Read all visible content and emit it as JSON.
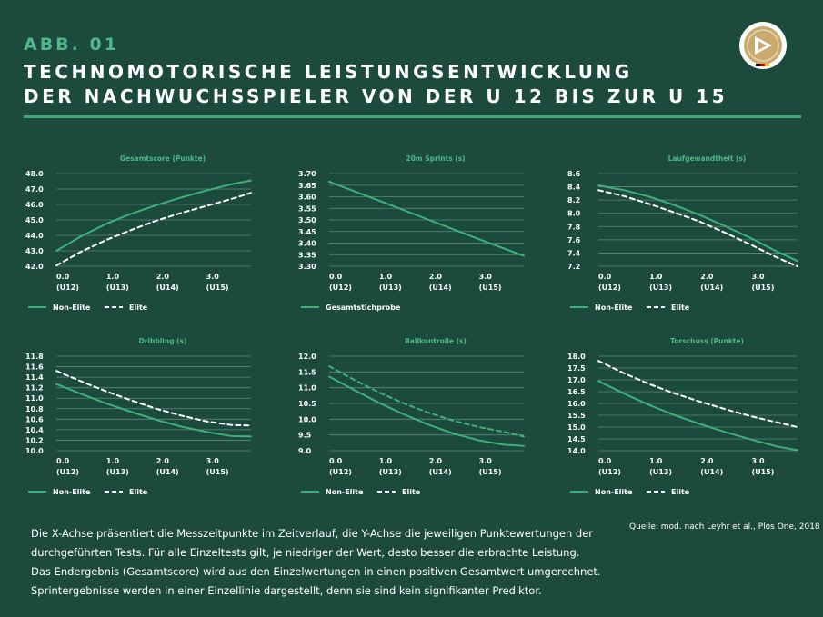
{
  "header": {
    "figure_label": "ABB. 01",
    "title_line1": "TECHNOMOTORISCHE LEISTUNGSENTWICKLUNG",
    "title_line2": "DER NACHWUCHSSPIELER VON DER U 12 BIS ZUR U 15"
  },
  "logo": {
    "icon": "dfb-logo-icon"
  },
  "colors": {
    "background": "#1c4a3c",
    "accent": "#4fb78a",
    "line": "#3db07e",
    "dashed": "#ffffff"
  },
  "chart_data": [
    {
      "type": "line",
      "title": "Gesamtscore (Punkte)",
      "x": [
        0,
        1,
        2,
        3
      ],
      "xticks": [
        {
          "value": "0.0",
          "label": "(U12)"
        },
        {
          "value": "1.0",
          "label": "(U13)"
        },
        {
          "value": "2.0",
          "label": "(U14)"
        },
        {
          "value": "3.0",
          "label": "(U15)"
        }
      ],
      "xlim": [
        0,
        3.9
      ],
      "ylim": [
        42.0,
        48.0
      ],
      "yticks": [
        "48.0",
        "47.0",
        "46.0",
        "45.0",
        "44.0",
        "43.0",
        "42.0"
      ],
      "series": [
        {
          "name": "Non-Elite",
          "style": "solid",
          "x": [
            0,
            0.5,
            1,
            1.5,
            2,
            2.5,
            3,
            3.5,
            3.9
          ],
          "y": [
            43.0,
            43.95,
            44.75,
            45.4,
            45.95,
            46.45,
            46.9,
            47.3,
            47.55
          ]
        },
        {
          "name": "Elite",
          "style": "dashed",
          "x": [
            0,
            0.5,
            1,
            1.5,
            2,
            2.5,
            3,
            3.5,
            3.9
          ],
          "y": [
            42.05,
            42.95,
            43.7,
            44.35,
            44.95,
            45.45,
            45.9,
            46.35,
            46.75
          ]
        }
      ],
      "legend": [
        "Non-Elite",
        "Elite"
      ]
    },
    {
      "type": "line",
      "title": "20m Sprints (s)",
      "x": [
        0,
        1,
        2,
        3
      ],
      "xticks": [
        {
          "value": "0.0",
          "label": "(U12)"
        },
        {
          "value": "1.0",
          "label": "(U13)"
        },
        {
          "value": "2.0",
          "label": "(U14)"
        },
        {
          "value": "3.0",
          "label": "(U15)"
        }
      ],
      "xlim": [
        0,
        3.9
      ],
      "ylim": [
        3.3,
        3.7
      ],
      "yticks": [
        "3.70",
        "3.65",
        "3.60",
        "3.55",
        "3.50",
        "3.45",
        "3.40",
        "3.35",
        "3.30"
      ],
      "series": [
        {
          "name": "Gesamtstichprobe",
          "style": "solid",
          "x": [
            0,
            1,
            2,
            3,
            3.9
          ],
          "y": [
            3.665,
            3.583,
            3.5,
            3.417,
            3.345
          ]
        }
      ],
      "legend": [
        "Gesamtstichprobe"
      ]
    },
    {
      "type": "line",
      "title": "Laufgewandtheit (s)",
      "x": [
        0,
        1,
        2,
        3
      ],
      "xticks": [
        {
          "value": "0.0",
          "label": "(U12)"
        },
        {
          "value": "1.0",
          "label": "(U13)"
        },
        {
          "value": "2.0",
          "label": "(U14)"
        },
        {
          "value": "3.0",
          "label": "(U15)"
        }
      ],
      "xlim": [
        0,
        3.9
      ],
      "ylim": [
        7.2,
        8.6
      ],
      "yticks": [
        "8.6",
        "8.4",
        "8.2",
        "8.0",
        "7.8",
        "7.6",
        "7.4",
        "7.2"
      ],
      "series": [
        {
          "name": "Non-Elite",
          "style": "solid",
          "x": [
            0,
            0.5,
            1,
            1.5,
            2,
            2.5,
            3,
            3.5,
            3.9
          ],
          "y": [
            8.42,
            8.35,
            8.25,
            8.12,
            7.97,
            7.8,
            7.62,
            7.42,
            7.28
          ]
        },
        {
          "name": "Elite",
          "style": "dashed",
          "x": [
            0,
            0.5,
            1,
            1.5,
            2,
            2.5,
            3,
            3.5,
            3.9
          ],
          "y": [
            8.35,
            8.26,
            8.14,
            8.01,
            7.87,
            7.7,
            7.52,
            7.33,
            7.2
          ]
        }
      ],
      "legend": [
        "Non-Elite",
        "Elite"
      ]
    },
    {
      "type": "line",
      "title": "Dribbling (s)",
      "x": [
        0,
        1,
        2,
        3
      ],
      "xticks": [
        {
          "value": "0.0",
          "label": "(U12)"
        },
        {
          "value": "1.0",
          "label": "(U13)"
        },
        {
          "value": "2.0",
          "label": "(U14)"
        },
        {
          "value": "3.0",
          "label": "(U15)"
        }
      ],
      "xlim": [
        0,
        3.9
      ],
      "ylim": [
        10.0,
        11.8
      ],
      "yticks": [
        "11.8",
        "11.6",
        "11.4",
        "11.2",
        "11.0",
        "10.8",
        "10.6",
        "10.4",
        "10.2",
        "10.0"
      ],
      "series": [
        {
          "name": "Non-Elite",
          "style": "solid",
          "x": [
            0,
            0.5,
            1,
            1.5,
            2,
            2.5,
            3,
            3.5,
            3.9
          ],
          "y": [
            11.27,
            11.08,
            10.9,
            10.74,
            10.59,
            10.46,
            10.36,
            10.28,
            10.27
          ]
        },
        {
          "name": "Elite",
          "style": "dashed",
          "x": [
            0,
            0.5,
            1,
            1.5,
            2,
            2.5,
            3,
            3.5,
            3.9
          ],
          "y": [
            11.52,
            11.32,
            11.13,
            10.96,
            10.8,
            10.67,
            10.56,
            10.49,
            10.48
          ]
        }
      ],
      "legend": [
        "Non-Elite",
        "Elite"
      ]
    },
    {
      "type": "line",
      "title": "Ballkontrolle (s)",
      "x": [
        0,
        1,
        2,
        3
      ],
      "xticks": [
        {
          "value": "0.0",
          "label": "(U12)"
        },
        {
          "value": "1.0",
          "label": "(U13)"
        },
        {
          "value": "2.0",
          "label": "(U14)"
        },
        {
          "value": "3.0",
          "label": "(U15)"
        }
      ],
      "xlim": [
        0,
        3.9
      ],
      "ylim": [
        9.0,
        12.0
      ],
      "yticks": [
        "12.0",
        "11.5",
        "11.0",
        "10.5",
        "10.0",
        "9.5",
        "9.0"
      ],
      "series": [
        {
          "name": "Non-Elite",
          "style": "solid",
          "x": [
            0,
            0.5,
            1,
            1.5,
            2,
            2.5,
            3,
            3.5,
            3.9
          ],
          "y": [
            11.35,
            10.93,
            10.52,
            10.15,
            9.82,
            9.54,
            9.33,
            9.19,
            9.15
          ]
        },
        {
          "name": "Elite",
          "style": "dashed",
          "x": [
            0,
            0.5,
            1,
            1.5,
            2,
            2.5,
            3,
            3.5,
            3.9
          ],
          "y": [
            11.68,
            11.25,
            10.85,
            10.5,
            10.2,
            9.95,
            9.75,
            9.6,
            9.45
          ]
        }
      ],
      "legend": [
        "Non-Elite",
        "Elite"
      ]
    },
    {
      "type": "line",
      "title": "Torschuss (Punkte)",
      "x": [
        0,
        1,
        2,
        3
      ],
      "xticks": [
        {
          "value": "0.0",
          "label": "(U12)"
        },
        {
          "value": "1.0",
          "label": "(U13)"
        },
        {
          "value": "2.0",
          "label": "(U14)"
        },
        {
          "value": "3.0",
          "label": "(U15)"
        }
      ],
      "xlim": [
        0,
        3.9
      ],
      "ylim": [
        14.0,
        18.0
      ],
      "yticks": [
        "18.0",
        "17.5",
        "17.0",
        "16.5",
        "16.0",
        "15.5",
        "15.0",
        "14.5",
        "14.0"
      ],
      "series": [
        {
          "name": "Non-Elite",
          "style": "solid",
          "x": [
            0,
            0.5,
            1,
            1.5,
            2,
            2.5,
            3,
            3.5,
            3.9
          ],
          "y": [
            16.95,
            16.42,
            15.93,
            15.5,
            15.12,
            14.78,
            14.47,
            14.18,
            14.02
          ]
        },
        {
          "name": "Elite",
          "style": "dashed",
          "x": [
            0,
            0.5,
            1,
            1.5,
            2,
            2.5,
            3,
            3.5,
            3.9
          ],
          "y": [
            17.8,
            17.28,
            16.82,
            16.42,
            16.07,
            15.75,
            15.45,
            15.2,
            15.0
          ]
        }
      ],
      "legend": [
        "Non-Elite",
        "Elite"
      ]
    }
  ],
  "source": "Quelle: mod. nach Leyhr et al., Plos One, 2018",
  "footnote": {
    "line1": "Die X-Achse präsentiert die Messzeitpunkte im Zeitverlauf, die Y-Achse die jeweiligen Punktewertungen der",
    "line2": "durchgeführten Tests. Für alle Einzeltests gilt, je niedriger der Wert, desto besser die erbrachte Leistung.",
    "line3": "Das Endergebnis (Gesamtscore) wird aus den Einzelwertungen in einen positiven Gesamtwert umgerechnet.",
    "line4": "Sprintergebnisse werden in einer Einzellinie dargestellt, denn sie sind kein signifikanter Prediktor."
  }
}
